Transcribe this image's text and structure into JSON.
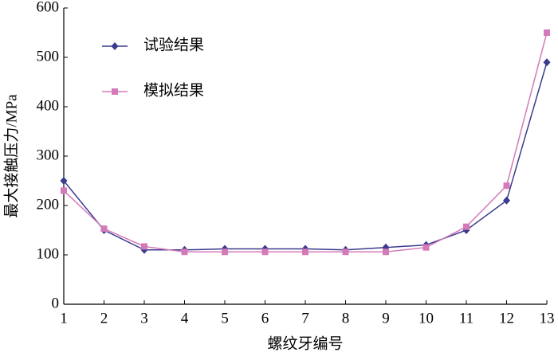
{
  "chart_data": {
    "type": "line",
    "x_label": "螺纹牙编号",
    "y_label": "最大接触压力/MPa",
    "x": [
      1,
      2,
      3,
      4,
      5,
      6,
      7,
      8,
      9,
      10,
      11,
      12,
      13
    ],
    "xlim": [
      1,
      13
    ],
    "xticks": [
      1,
      2,
      3,
      4,
      5,
      6,
      7,
      8,
      9,
      10,
      11,
      12,
      13
    ],
    "ylim": [
      0,
      600
    ],
    "yticks": [
      0,
      100,
      200,
      300,
      400,
      500,
      600
    ],
    "grid": false,
    "legend": "upper-left",
    "series": [
      {
        "name": "试验结果",
        "color": "#3b3b8f",
        "marker": "diamond",
        "values": [
          250,
          150,
          110,
          110,
          112,
          112,
          112,
          110,
          115,
          120,
          150,
          210,
          490
        ]
      },
      {
        "name": "模拟结果",
        "color": "#d57ab8",
        "marker": "square",
        "values": [
          230,
          153,
          117,
          106,
          106,
          106,
          106,
          106,
          106,
          115,
          157,
          240,
          550
        ]
      }
    ]
  }
}
